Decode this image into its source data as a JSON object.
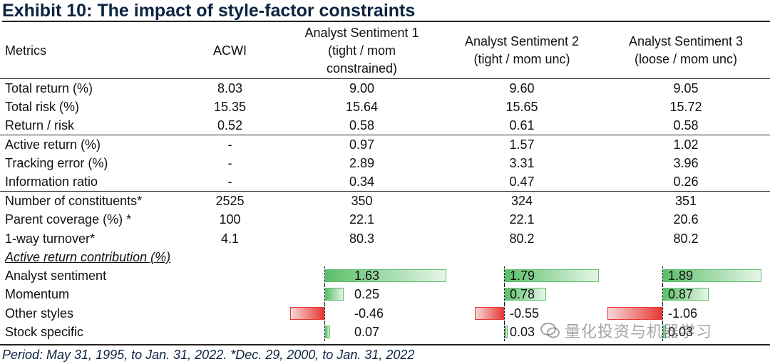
{
  "title": "Exhibit 10: The impact of style-factor constraints",
  "headers": {
    "metrics": "Metrics",
    "acwi": "ACWI",
    "as1_l1": "Analyst Sentiment 1",
    "as1_l2": "(tight / mom",
    "as1_l3": "constrained)",
    "as2_l1": "Analyst Sentiment 2",
    "as2_l2": "(tight / mom unc)",
    "as3_l1": "Analyst Sentiment 3",
    "as3_l2": "(loose / mom unc)"
  },
  "rows": [
    {
      "label": "Total return (%)",
      "acwi": "8.03",
      "as1": "9.00",
      "as2": "9.60",
      "as3": "9.05"
    },
    {
      "label": "Total risk (%)",
      "acwi": "15.35",
      "as1": "15.64",
      "as2": "15.65",
      "as3": "15.72"
    },
    {
      "label": "Return / risk",
      "acwi": "0.52",
      "as1": "0.58",
      "as2": "0.61",
      "as3": "0.58"
    },
    {
      "label": "Active return (%)",
      "acwi": "-",
      "as1": "0.97",
      "as2": "1.57",
      "as3": "1.02"
    },
    {
      "label": "Tracking error (%)",
      "acwi": "-",
      "as1": "2.89",
      "as2": "3.31",
      "as3": "3.96"
    },
    {
      "label": "Information ratio",
      "acwi": "-",
      "as1": "0.34",
      "as2": "0.47",
      "as3": "0.26"
    },
    {
      "label": "Number of constituents*",
      "acwi": "2525",
      "as1": "350",
      "as2": "324",
      "as3": "351"
    },
    {
      "label": "Parent coverage (%) *",
      "acwi": "100",
      "as1": "22.1",
      "as2": "22.1",
      "as3": "20.6"
    },
    {
      "label": "1-way turnover*",
      "acwi": "4.1",
      "as1": "80.3",
      "as2": "80.2",
      "as3": "80.2"
    }
  ],
  "contribution_title": "Active return contribution (%)",
  "contributions": [
    {
      "label": "Analyst sentiment",
      "as1": 1.63,
      "as2": 1.79,
      "as3": 1.89,
      "as1_t": "1.63",
      "as2_t": "1.79",
      "as3_t": "1.89"
    },
    {
      "label": "Momentum",
      "as1": 0.25,
      "as2": 0.78,
      "as3": 0.87,
      "as1_t": "0.25",
      "as2_t": "0.78",
      "as3_t": "0.87"
    },
    {
      "label": "Other styles",
      "as1": -0.46,
      "as2": -0.55,
      "as3": -1.06,
      "as1_t": "-0.46",
      "as2_t": "-0.55",
      "as3_t": "-1.06"
    },
    {
      "label": "Stock specific",
      "as1": 0.07,
      "as2": 0.03,
      "as3": 0.03,
      "as1_t": "0.07",
      "as2_t": "0.03",
      "as3_t": "0.03"
    }
  ],
  "footer": "Period: May 31, 1995, to Jan. 31, 2022. *Dec. 29, 2000, to Jan. 31, 2022",
  "watermark": "量化投资与机器学习",
  "colors": {
    "positive": "#5cbf6a",
    "negative": "#e53935",
    "title": "#0c2340"
  }
}
